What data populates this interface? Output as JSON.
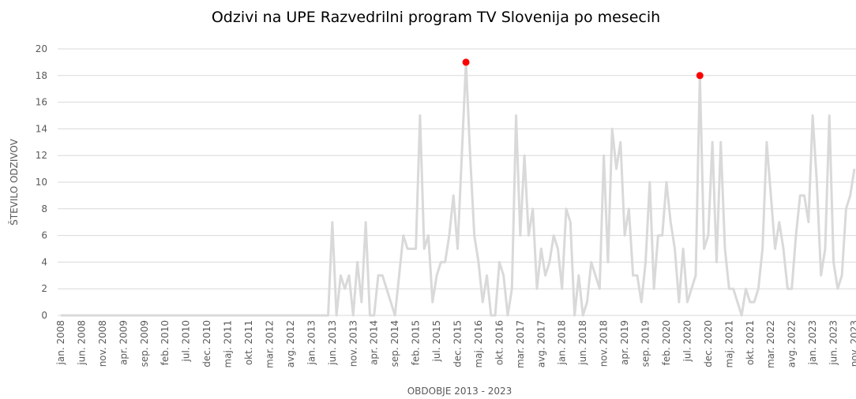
{
  "chart_data": {
    "type": "line",
    "title": "Odzivi na UPE Razvedrilni program TV Slovenija po mesecih",
    "xlabel": "OBDOBJE 2013 - 2023",
    "ylabel": "ŠTEVILO ODZIVOV",
    "categories": [
      "jan. 2008",
      null,
      null,
      null,
      null,
      "jun. 2008",
      null,
      null,
      null,
      null,
      "nov. 2008",
      null,
      null,
      null,
      null,
      "apr. 2009",
      null,
      null,
      null,
      null,
      "sep. 2009",
      null,
      null,
      null,
      null,
      "feb. 2010",
      null,
      null,
      null,
      null,
      "jul. 2010",
      null,
      null,
      null,
      null,
      "dec. 2010",
      null,
      null,
      null,
      null,
      "maj. 2011",
      null,
      null,
      null,
      null,
      "okt. 2011",
      null,
      null,
      null,
      null,
      "mar. 2012",
      null,
      null,
      null,
      null,
      "avg. 2012",
      null,
      null,
      null,
      null,
      "jan. 2013",
      null,
      null,
      null,
      null,
      "jun. 2013",
      null,
      null,
      null,
      null,
      "nov. 2013",
      null,
      null,
      null,
      null,
      "apr. 2014",
      null,
      null,
      null,
      null,
      "sep. 2014",
      null,
      null,
      null,
      null,
      "feb. 2015",
      null,
      null,
      null,
      null,
      "jul. 2015",
      null,
      null,
      null,
      null,
      "dec. 2015",
      null,
      null,
      null,
      null,
      "maj. 2016",
      null,
      null,
      null,
      null,
      "okt. 2016",
      null,
      null,
      null,
      null,
      "mar. 2017",
      null,
      null,
      null,
      null,
      "avg. 2017",
      null,
      null,
      null,
      null,
      "jan. 2018",
      null,
      null,
      null,
      null,
      "jun. 2018",
      null,
      null,
      null,
      null,
      "nov. 2018",
      null,
      null,
      null,
      null,
      "apr. 2019",
      null,
      null,
      null,
      null,
      "sep. 2019",
      null,
      null,
      null,
      null,
      "feb. 2020",
      null,
      null,
      null,
      null,
      "jul. 2020",
      null,
      null,
      null,
      null,
      "dec. 2020",
      null,
      null,
      null,
      null,
      "maj. 2021",
      null,
      null,
      null,
      null,
      "okt. 2021",
      null,
      null,
      null,
      null,
      "mar. 2022",
      null,
      null,
      null,
      null,
      "avg. 2022",
      null,
      null,
      null,
      null,
      "jan. 2023",
      null,
      null,
      null,
      null,
      "jun. 2023",
      null,
      null,
      null,
      null,
      "nov. 2023"
    ],
    "values": [
      0,
      0,
      0,
      0,
      0,
      0,
      0,
      0,
      0,
      0,
      0,
      0,
      0,
      0,
      0,
      0,
      0,
      0,
      0,
      0,
      0,
      0,
      0,
      0,
      0,
      0,
      0,
      0,
      0,
      0,
      0,
      0,
      0,
      0,
      0,
      0,
      0,
      0,
      0,
      0,
      0,
      0,
      0,
      0,
      0,
      0,
      0,
      0,
      0,
      0,
      0,
      0,
      0,
      0,
      0,
      0,
      0,
      0,
      0,
      0,
      0,
      0,
      0,
      0,
      0,
      7,
      0,
      3,
      2,
      3,
      0,
      4,
      1,
      7,
      0,
      0,
      3,
      3,
      2,
      1,
      0,
      3,
      6,
      5,
      5,
      5,
      15,
      5,
      6,
      1,
      3,
      4,
      4,
      6,
      9,
      5,
      12,
      19,
      12,
      6,
      4,
      1,
      3,
      0,
      0,
      4,
      3,
      0,
      2,
      15,
      6,
      12,
      6,
      8,
      2,
      5,
      3,
      4,
      6,
      5,
      2,
      8,
      7,
      0,
      3,
      0,
      1,
      4,
      3,
      2,
      12,
      4,
      14,
      11,
      13,
      6,
      8,
      3,
      3,
      1,
      4,
      10,
      2,
      6,
      6,
      10,
      7,
      5,
      1,
      5,
      1,
      2,
      3,
      18,
      5,
      6,
      13,
      4,
      13,
      5,
      2,
      2,
      1,
      0,
      2,
      1,
      1,
      2,
      5,
      13,
      9,
      5,
      7,
      5,
      2,
      2,
      6,
      9,
      9,
      7,
      15,
      10,
      3,
      5,
      15,
      4,
      2,
      3,
      8,
      9,
      11
    ],
    "color": "#d9d9d9",
    "highlighted_points": [
      97,
      153
    ],
    "highlight_color": "#ff0000",
    "ylim": [
      0,
      20
    ],
    "yticks": [
      0,
      2,
      4,
      6,
      8,
      10,
      12,
      14,
      16,
      18,
      20
    ],
    "grid": true
  }
}
